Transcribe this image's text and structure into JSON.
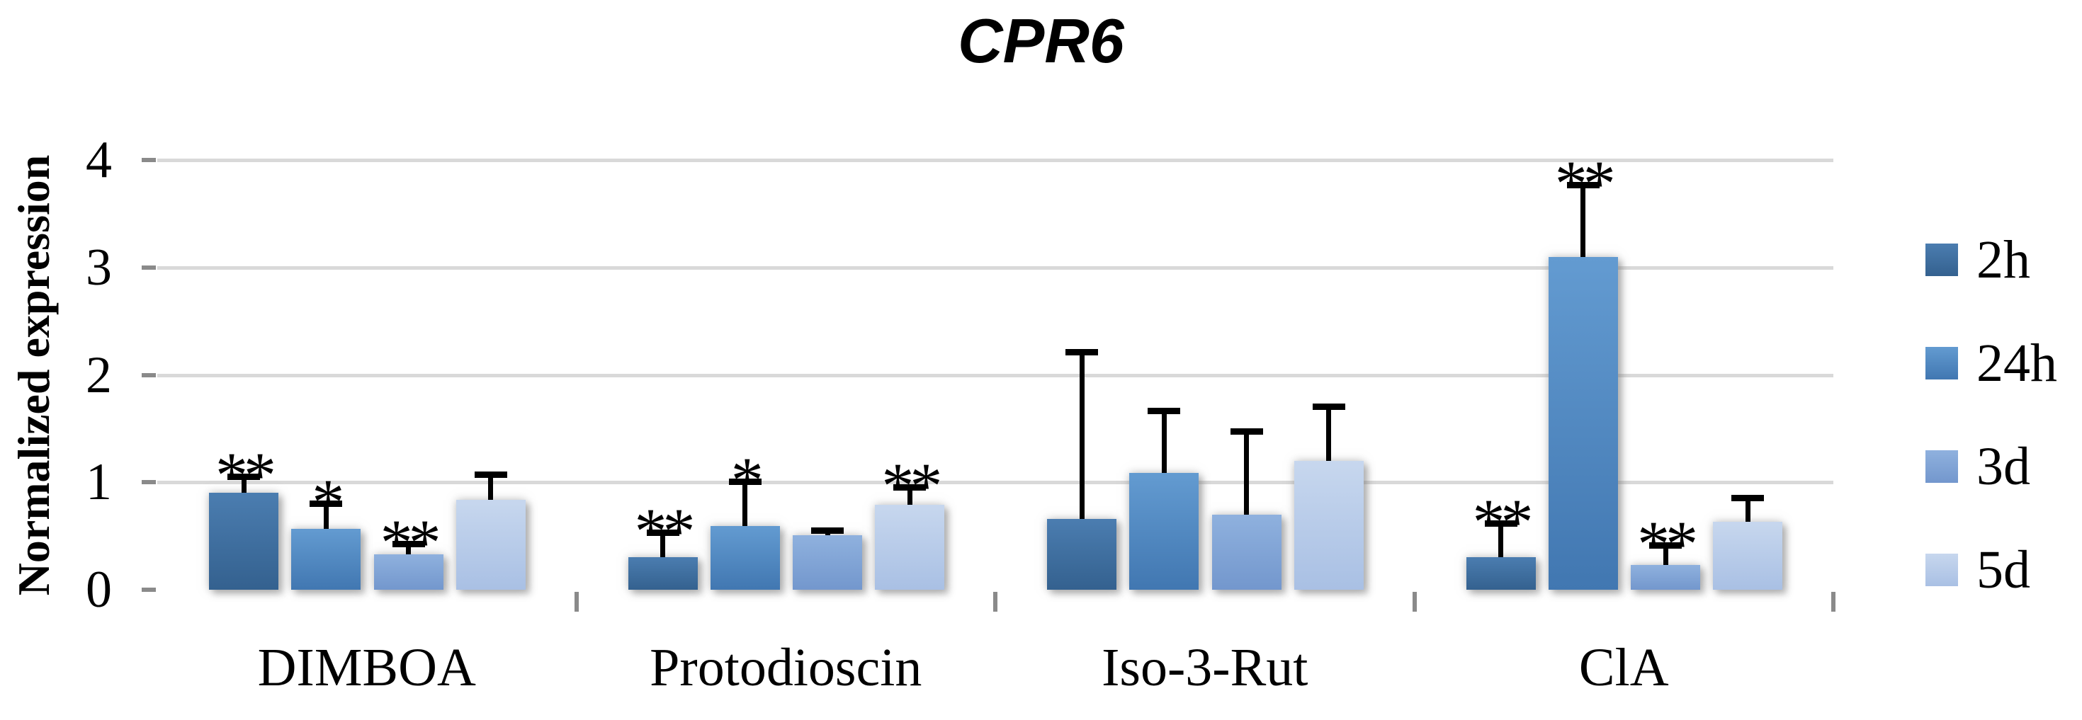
{
  "title": "CPR6",
  "y_axis": {
    "label": "Normalized expression"
  },
  "colors": {
    "gridline": "#D9D9D9",
    "axis": "#8A8A8A",
    "error_bar": "#000000"
  },
  "chart_data": {
    "type": "bar",
    "title": "CPR6",
    "xlabel": "",
    "ylabel": "Normalized expression",
    "ylim": [
      0,
      4
    ],
    "yticks": [
      0,
      1,
      2,
      3,
      4
    ],
    "grid": true,
    "legend_position": "right",
    "categories": [
      "DIMBOA",
      "Protodioscin",
      "Iso-3-Rut",
      "ClA"
    ],
    "series": [
      {
        "name": "2h",
        "color_top": "#4B7DB0",
        "color_bottom": "#34618F",
        "values": [
          0.9,
          0.3,
          0.66,
          0.3
        ],
        "error_top": [
          1.05,
          0.53,
          2.21,
          0.61
        ],
        "significance": [
          "**",
          "**",
          "",
          "**"
        ]
      },
      {
        "name": "24h",
        "color_top": "#639BD1",
        "color_bottom": "#4177B1",
        "values": [
          0.57,
          0.59,
          1.09,
          3.1
        ],
        "error_top": [
          0.8,
          1.0,
          1.66,
          3.76
        ],
        "significance": [
          "*",
          "*",
          "",
          "**"
        ]
      },
      {
        "name": "3d",
        "color_top": "#8FB1DE",
        "color_bottom": "#7397CD",
        "values": [
          0.33,
          0.51,
          0.7,
          0.23
        ],
        "error_top": [
          0.42,
          0.55,
          1.47,
          0.41
        ],
        "significance": [
          "**",
          "",
          "",
          "**"
        ]
      },
      {
        "name": "5d",
        "color_top": "#C7D7EE",
        "color_bottom": "#A9C0E4",
        "values": [
          0.84,
          0.79,
          1.2,
          0.63
        ],
        "error_top": [
          1.07,
          0.95,
          1.7,
          0.85
        ],
        "significance": [
          "",
          "**",
          "",
          ""
        ]
      }
    ]
  }
}
